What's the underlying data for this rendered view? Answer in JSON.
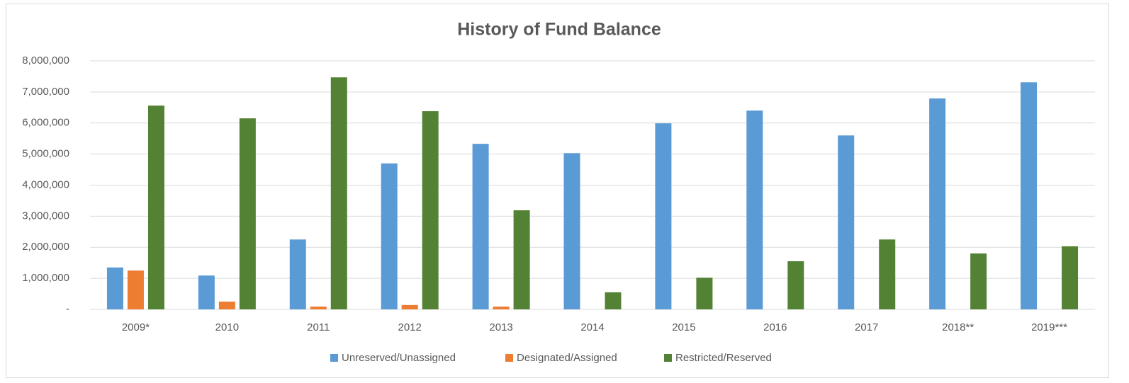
{
  "chart_data": {
    "type": "bar",
    "title": "History of Fund Balance",
    "categories": [
      "2009*",
      "2010",
      "2011",
      "2012",
      "2013",
      "2014",
      "2015",
      "2016",
      "2017",
      "2018**",
      "2019***"
    ],
    "series": [
      {
        "name": "Unreserved/Unassigned",
        "color": "#5b9bd5",
        "values": [
          1350000,
          1090000,
          2250000,
          4700000,
          5330000,
          5030000,
          5990000,
          6400000,
          5600000,
          6790000,
          7310000
        ]
      },
      {
        "name": "Designated/Assigned",
        "color": "#ed7d31",
        "values": [
          1250000,
          250000,
          90000,
          140000,
          90000,
          0,
          0,
          0,
          0,
          0,
          0
        ]
      },
      {
        "name": "Restricted/Reserved",
        "color": "#548235",
        "values": [
          6560000,
          6150000,
          7470000,
          6380000,
          3190000,
          550000,
          1020000,
          1550000,
          2250000,
          1800000,
          2030000
        ]
      }
    ],
    "ylim": [
      0,
      8000000
    ],
    "yticks": [
      {
        "value": 0,
        "label": "-"
      },
      {
        "value": 1000000,
        "label": "1,000,000"
      },
      {
        "value": 2000000,
        "label": "2,000,000"
      },
      {
        "value": 3000000,
        "label": "3,000,000"
      },
      {
        "value": 4000000,
        "label": "4,000,000"
      },
      {
        "value": 5000000,
        "label": "5,000,000"
      },
      {
        "value": 6000000,
        "label": "6,000,000"
      },
      {
        "value": 7000000,
        "label": "7,000,000"
      },
      {
        "value": 8000000,
        "label": "8,000,000"
      }
    ],
    "grid": true,
    "legend": "bottom"
  }
}
